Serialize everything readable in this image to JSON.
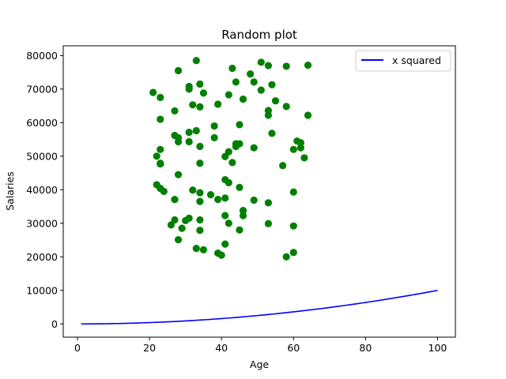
{
  "chart_data": {
    "type": "scatter",
    "title": "Random plot",
    "xlabel": "Age",
    "ylabel": "Salaries",
    "xlim": [
      -3.95,
      104.95
    ],
    "ylim": [
      -3940,
      82900
    ],
    "xticks": [
      0,
      20,
      40,
      60,
      80,
      100
    ],
    "yticks": [
      0,
      10000,
      20000,
      30000,
      40000,
      50000,
      60000,
      70000,
      80000
    ],
    "grid": false,
    "legend_position": "upper-right",
    "legend": [
      "x squared"
    ],
    "colors": {
      "line": "#0000ff",
      "points": "#008000"
    },
    "line_series": {
      "name": "x squared",
      "function": "x^2",
      "x_range": [
        1,
        100
      ]
    },
    "scatter_series": {
      "points": [
        [
          21,
          69000
        ],
        [
          23,
          67500
        ],
        [
          28,
          75500
        ],
        [
          33,
          78500
        ],
        [
          27,
          63500
        ],
        [
          23,
          61000
        ],
        [
          31,
          70800
        ],
        [
          34,
          71500
        ],
        [
          31,
          70000
        ],
        [
          32,
          65300
        ],
        [
          35,
          68800
        ],
        [
          34,
          64700
        ],
        [
          39,
          65500
        ],
        [
          42,
          68300
        ],
        [
          46,
          67000
        ],
        [
          43,
          76200
        ],
        [
          44,
          72100
        ],
        [
          48,
          74500
        ],
        [
          49,
          72100
        ],
        [
          51,
          78000
        ],
        [
          53,
          77000
        ],
        [
          58,
          76800
        ],
        [
          64,
          77100
        ],
        [
          51,
          69700
        ],
        [
          54,
          71300
        ],
        [
          55,
          66500
        ],
        [
          53,
          63600
        ],
        [
          53,
          62200
        ],
        [
          58,
          64800
        ],
        [
          64,
          62200
        ],
        [
          27,
          56200
        ],
        [
          28,
          55500
        ],
        [
          28,
          54300
        ],
        [
          31,
          57100
        ],
        [
          33,
          57600
        ],
        [
          31,
          54300
        ],
        [
          38,
          59000
        ],
        [
          38,
          55500
        ],
        [
          34,
          52900
        ],
        [
          45,
          59400
        ],
        [
          42,
          51300
        ],
        [
          41,
          49900
        ],
        [
          44,
          53700
        ],
        [
          44,
          52900
        ],
        [
          45,
          53700
        ],
        [
          49,
          52500
        ],
        [
          43,
          48100
        ],
        [
          54,
          56800
        ],
        [
          61,
          54500
        ],
        [
          62,
          54000
        ],
        [
          62,
          52500
        ],
        [
          60,
          52000
        ],
        [
          57,
          47200
        ],
        [
          63,
          49500
        ],
        [
          22,
          50000
        ],
        [
          23,
          52000
        ],
        [
          23,
          47900
        ],
        [
          23,
          47700
        ],
        [
          34,
          47900
        ],
        [
          28,
          44500
        ],
        [
          22,
          41500
        ],
        [
          23,
          40400
        ],
        [
          24,
          39500
        ],
        [
          32,
          39900
        ],
        [
          34,
          39100
        ],
        [
          27,
          37100
        ],
        [
          34,
          36500
        ],
        [
          37,
          38500
        ],
        [
          39,
          37100
        ],
        [
          42,
          42100
        ],
        [
          41,
          43000
        ],
        [
          41,
          37500
        ],
        [
          45,
          40700
        ],
        [
          49,
          36900
        ],
        [
          53,
          36100
        ],
        [
          60,
          39300
        ],
        [
          46,
          33800
        ],
        [
          46,
          32300
        ],
        [
          41,
          32300
        ],
        [
          42,
          30000
        ],
        [
          45,
          28000
        ],
        [
          53,
          29900
        ],
        [
          60,
          29200
        ],
        [
          26,
          29500
        ],
        [
          27,
          31000
        ],
        [
          30,
          30800
        ],
        [
          31,
          31500
        ],
        [
          34,
          31000
        ],
        [
          29,
          28500
        ],
        [
          34,
          27900
        ],
        [
          28,
          25100
        ],
        [
          35,
          22100
        ],
        [
          39,
          21100
        ],
        [
          40,
          20500
        ],
        [
          41,
          23800
        ],
        [
          33,
          22500
        ],
        [
          58,
          20000
        ],
        [
          60,
          21300
        ]
      ]
    }
  }
}
